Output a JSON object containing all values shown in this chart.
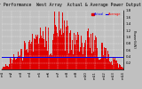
{
  "title": "Solar PV/Inverter Performance  West Array  Actual & Average Power Output",
  "bg_color": "#c0c0c0",
  "plot_bg_color": "#c0c0c0",
  "bar_color": "#dd0000",
  "avg_line_color": "#0000ee",
  "avg_value": 0.38,
  "ylim": [
    0,
    1.8
  ],
  "yticks": [
    0.2,
    0.4,
    0.6,
    0.8,
    1.0,
    1.2,
    1.4,
    1.6,
    1.8
  ],
  "ylabel": "Power(kW)",
  "legend_actual_label": "Actual",
  "legend_avg_label": "Average",
  "title_fontsize": 3.5,
  "axis_fontsize": 2.8,
  "legend_fontsize": 2.5,
  "n_bars": 365,
  "seed": 7
}
